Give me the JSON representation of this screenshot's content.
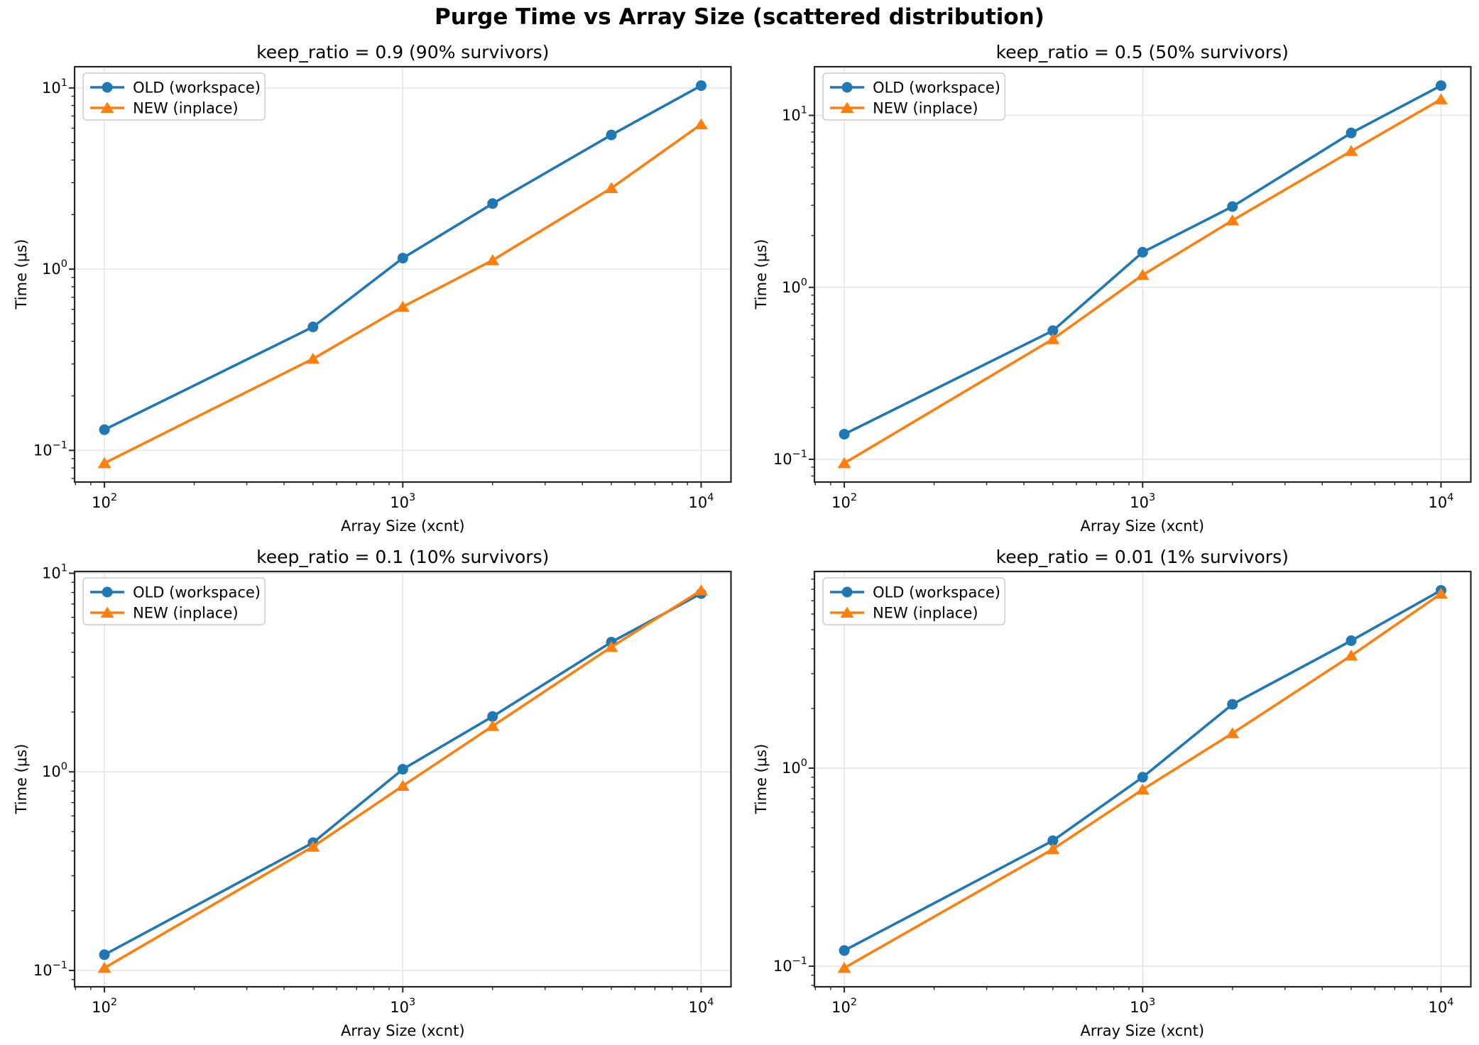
{
  "suptitle": "Purge Time vs Array Size (scattered distribution)",
  "style": {
    "background": "#ffffff",
    "grid_color": "#e4e4e4",
    "spine_color": "#262626",
    "text_color": "#000000",
    "legend_border_color": "#cccccc",
    "blue": "#1f77b4",
    "orange": "#ff7f0e"
  },
  "chart_data": [
    {
      "type": "line",
      "title": "keep_ratio = 0.9 (90% survivors)",
      "xlabel": "Array Size (xcnt)",
      "ylabel": "Time (μs)",
      "xscale": "log",
      "yscale": "log",
      "grid": true,
      "legend_position": "upper left",
      "x": [
        100,
        500,
        1000,
        2000,
        5000,
        10000
      ],
      "series": [
        {
          "name": "OLD (workspace)",
          "color": "#1f77b4",
          "marker": "circle",
          "values": [
            0.13,
            0.48,
            1.15,
            2.3,
            5.5,
            10.3
          ]
        },
        {
          "name": "NEW (inplace)",
          "color": "#ff7f0e",
          "marker": "triangle",
          "values": [
            0.085,
            0.32,
            0.62,
            1.12,
            2.8,
            6.3
          ]
        }
      ]
    },
    {
      "type": "line",
      "title": "keep_ratio = 0.5 (50% survivors)",
      "xlabel": "Array Size (xcnt)",
      "ylabel": "Time (μs)",
      "xscale": "log",
      "yscale": "log",
      "grid": true,
      "legend_position": "upper left",
      "x": [
        100,
        500,
        1000,
        2000,
        5000,
        10000
      ],
      "series": [
        {
          "name": "OLD (workspace)",
          "color": "#1f77b4",
          "marker": "circle",
          "values": [
            0.14,
            0.56,
            1.6,
            2.95,
            7.9,
            14.9
          ]
        },
        {
          "name": "NEW (inplace)",
          "color": "#ff7f0e",
          "marker": "triangle",
          "values": [
            0.095,
            0.5,
            1.18,
            2.45,
            6.2,
            12.4
          ]
        }
      ]
    },
    {
      "type": "line",
      "title": "keep_ratio = 0.1 (10% survivors)",
      "xlabel": "Array Size (xcnt)",
      "ylabel": "Time (μs)",
      "xscale": "log",
      "yscale": "log",
      "grid": true,
      "legend_position": "upper left",
      "x": [
        100,
        500,
        1000,
        2000,
        5000,
        10000
      ],
      "series": [
        {
          "name": "OLD (workspace)",
          "color": "#1f77b4",
          "marker": "circle",
          "values": [
            0.12,
            0.44,
            1.03,
            1.9,
            4.5,
            7.9
          ]
        },
        {
          "name": "NEW (inplace)",
          "color": "#ff7f0e",
          "marker": "triangle",
          "values": [
            0.103,
            0.42,
            0.85,
            1.7,
            4.25,
            8.2
          ]
        }
      ]
    },
    {
      "type": "line",
      "title": "keep_ratio = 0.01 (1% survivors)",
      "xlabel": "Array Size (xcnt)",
      "ylabel": "Time (μs)",
      "xscale": "log",
      "yscale": "log",
      "grid": true,
      "legend_position": "upper left",
      "x": [
        100,
        500,
        1000,
        2000,
        5000,
        10000
      ],
      "series": [
        {
          "name": "OLD (workspace)",
          "color": "#1f77b4",
          "marker": "circle",
          "values": [
            0.12,
            0.43,
            0.9,
            2.1,
            4.4,
            7.9
          ]
        },
        {
          "name": "NEW (inplace)",
          "color": "#ff7f0e",
          "marker": "triangle",
          "values": [
            0.098,
            0.39,
            0.78,
            1.5,
            3.7,
            7.6
          ]
        }
      ]
    }
  ]
}
